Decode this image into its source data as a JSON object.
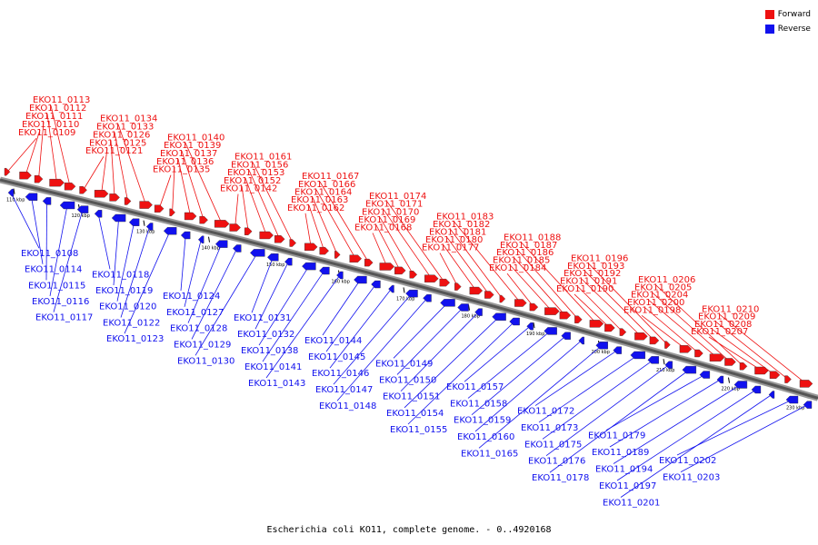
{
  "title": "Escherichia coli KO11, complete genome. - 0..4920168",
  "legend": {
    "forward_label": "Forward",
    "reverse_label": "Reverse",
    "forward_color": "#ee1111",
    "reverse_color": "#1111ee"
  },
  "ticks": [
    "110 kbp",
    "120 kbp",
    "130 kbp",
    "140 kbp",
    "150 kbp",
    "160 kbp",
    "170 kbp",
    "180 kbp",
    "190 kbp",
    "200 kbp",
    "210 kbp",
    "220 kbp",
    "230 kbp"
  ],
  "forward_genes": [
    "EKO11_0109",
    "EKO11_0110",
    "EKO11_0111",
    "EKO11_0112",
    "EKO11_0113",
    "EKO11_0121",
    "EKO11_0125",
    "EKO11_0126",
    "EKO11_0133",
    "EKO11_0134",
    "EKO11_0135",
    "EKO11_0136",
    "EKO11_0137",
    "EKO11_0139",
    "EKO11_0140",
    "EKO11_0142",
    "EKO11_0152",
    "EKO11_0153",
    "EKO11_0156",
    "EKO11_0161",
    "EKO11_0162",
    "EKO11_0163",
    "EKO11_0164",
    "EKO11_0166",
    "EKO11_0167",
    "EKO11_0168",
    "EKO11_0169",
    "EKO11_0170",
    "EKO11_0171",
    "EKO11_0174",
    "EKO11_0177",
    "EKO11_0180",
    "EKO11_0181",
    "EKO11_0182",
    "EKO11_0183",
    "EKO11_0184",
    "EKO11_0185",
    "EKO11_0186",
    "EKO11_0187",
    "EKO11_0188",
    "EKO11_0190",
    "EKO11_0191",
    "EKO11_0192",
    "EKO11_0193",
    "EKO11_0196",
    "EKO11_0198",
    "EKO11_0200",
    "EKO11_0204",
    "EKO11_0205",
    "EKO11_0206",
    "EKO11_0207",
    "EKO11_0208",
    "EKO11_0209",
    "EKO11_0210"
  ],
  "reverse_genes": [
    "EKO11_0108",
    "EKO11_0114",
    "EKO11_0115",
    "EKO11_0116",
    "EKO11_0117",
    "EKO11_0118",
    "EKO11_0119",
    "EKO11_0120",
    "EKO11_0122",
    "EKO11_0123",
    "EKO11_0124",
    "EKO11_0127",
    "EKO11_0128",
    "EKO11_0129",
    "EKO11_0130",
    "EKO11_0131",
    "EKO11_0132",
    "EKO11_0138",
    "EKO11_0141",
    "EKO11_0143",
    "EKO11_0144",
    "EKO11_0145",
    "EKO11_0146",
    "EKO11_0147",
    "EKO11_0148",
    "EKO11_0149",
    "EKO11_0150",
    "EKO11_0151",
    "EKO11_0154",
    "EKO11_0155",
    "EKO11_0157",
    "EKO11_0158",
    "EKO11_0159",
    "EKO11_0160",
    "EKO11_0165",
    "EKO11_0172",
    "EKO11_0173",
    "EKO11_0175",
    "EKO11_0176",
    "EKO11_0178",
    "EKO11_0179",
    "EKO11_0189",
    "EKO11_0194",
    "EKO11_0197",
    "EKO11_0201",
    "EKO11_0202",
    "EKO11_0203"
  ]
}
